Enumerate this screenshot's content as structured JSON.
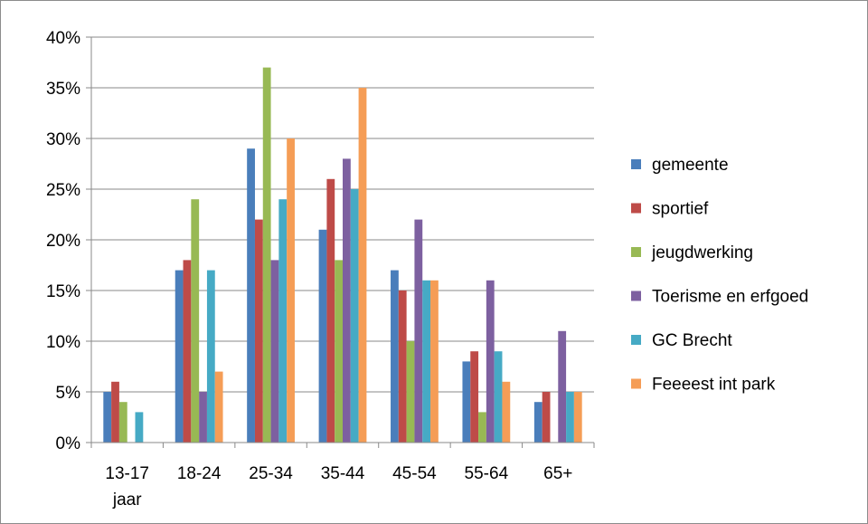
{
  "chart_data": {
    "type": "bar",
    "categories": [
      "13-17 jaar",
      "18-24",
      "25-34",
      "35-44",
      "45-54",
      "55-64",
      "65+"
    ],
    "category_lines": [
      [
        "13-17",
        "jaar"
      ],
      [
        "18-24"
      ],
      [
        "25-34"
      ],
      [
        "35-44"
      ],
      [
        "45-54"
      ],
      [
        "55-64"
      ],
      [
        "65+"
      ]
    ],
    "series": [
      {
        "name": "gemeente",
        "color": "#4a7ebb",
        "values": [
          5,
          17,
          29,
          21,
          17,
          8,
          4
        ]
      },
      {
        "name": "sportief",
        "color": "#be4b48",
        "values": [
          6,
          18,
          22,
          26,
          15,
          9,
          5
        ]
      },
      {
        "name": "jeugdwerking",
        "color": "#98b954",
        "values": [
          4,
          24,
          37,
          18,
          10,
          3,
          0
        ]
      },
      {
        "name": "Toerisme en erfgoed",
        "color": "#7d60a0",
        "values": [
          0,
          5,
          18,
          28,
          22,
          16,
          11
        ]
      },
      {
        "name": "GC Brecht",
        "color": "#46aac5",
        "values": [
          3,
          17,
          24,
          25,
          16,
          9,
          5
        ]
      },
      {
        "name": "Feeeest int park",
        "color": "#f59d56",
        "values": [
          0,
          7,
          30,
          35,
          16,
          6,
          5
        ]
      }
    ],
    "ylim": [
      0,
      40
    ],
    "yticks": [
      0,
      5,
      10,
      15,
      20,
      25,
      30,
      35,
      40
    ],
    "ytick_labels": [
      "0%",
      "5%",
      "10%",
      "15%",
      "20%",
      "25%",
      "30%",
      "35%",
      "40%"
    ],
    "grid": true,
    "legend_position": "right",
    "title": "",
    "xlabel": "",
    "ylabel": ""
  }
}
